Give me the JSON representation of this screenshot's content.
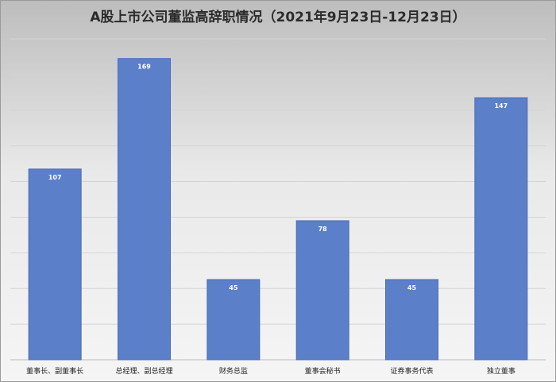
{
  "title": "A股上市公司董监高辞职情况（2021年9月23日-12月23日）",
  "colors": {
    "bar": "#5b7fc9",
    "bar_edge": "#4a6db8",
    "grid": "#d4d4d4",
    "axis": "#bdbdbd"
  },
  "chart_data": {
    "type": "bar",
    "title": "A股上市公司董监高辞职情况（2021年9月23日-12月23日）",
    "categories": [
      "董事长、副董事长",
      "总经理、副总经理",
      "财务总监",
      "董事会秘书",
      "证券事务代表",
      "独立董事"
    ],
    "values": [
      107,
      169,
      45,
      78,
      45,
      147
    ],
    "ylim": [
      0,
      180
    ],
    "grid": true,
    "legend": "none",
    "xlabel": "",
    "ylabel": ""
  }
}
